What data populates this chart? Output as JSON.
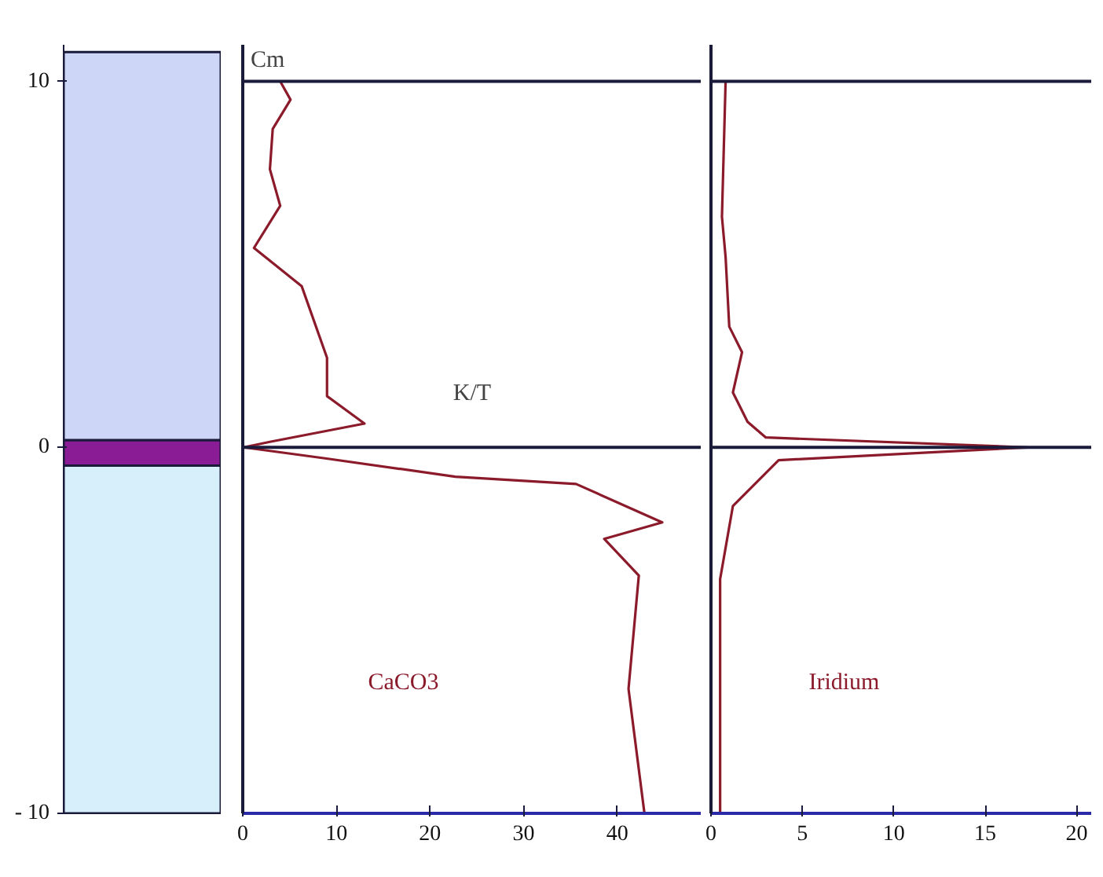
{
  "chart_data": [
    {
      "type": "bar",
      "categories": [
        null
      ],
      "ylim": [
        -10,
        11
      ],
      "yticks": [
        {
          "value": -10,
          "label": "- 10"
        },
        0,
        10
      ],
      "tick_labels": "y",
      "grid": false,
      "series": [
        {
          "color": "#d6effb",
          "base": [
            -10
          ],
          "values": [
            9.5
          ]
        },
        {
          "color": "#8a1c96",
          "base": [
            -0.5
          ],
          "values": [
            0.7
          ]
        },
        {
          "color": "#cdd6f6",
          "base": [
            0.2
          ],
          "values": [
            10.6
          ]
        }
      ]
    },
    {
      "type": "line",
      "orientation": "horizontal",
      "ylabel": "Cm",
      "xlim": [
        0,
        49
      ],
      "xticks": [
        0,
        10,
        20,
        30,
        40
      ],
      "ylim": [
        -10,
        11
      ],
      "tick_labels": "x",
      "grid": false,
      "marker": "none",
      "line_style": "solid",
      "ref_lines": [
        {
          "axis": "y",
          "value": 10,
          "color": "#1a1a3a"
        },
        {
          "axis": "y",
          "value": 0,
          "color": "#1a1a3a",
          "label": "K/T"
        }
      ],
      "series": [
        {
          "name": "CaCO3",
          "color": "#8b1a2b",
          "x": [
            10,
            9.5,
            8.7,
            7.6,
            6.6,
            5.45,
            4.4,
            2.45,
            1.4,
            0.65,
            0.15,
            0,
            -0.3,
            -0.8,
            -1.0,
            -2.05,
            -2.5,
            -3.5,
            -6.6,
            -10
          ],
          "values": [
            4.0,
            5.1,
            3.2,
            2.9,
            4.0,
            1.2,
            6.3,
            9.0,
            9.0,
            13.0,
            2.9,
            0.1,
            8.8,
            22.7,
            35.6,
            44.8,
            38.6,
            42.3,
            41.2,
            42.9
          ]
        }
      ]
    },
    {
      "type": "line",
      "orientation": "horizontal",
      "xlim": [
        0,
        20.8
      ],
      "xticks": [
        0,
        5,
        10,
        15,
        20
      ],
      "ylim": [
        -10,
        11
      ],
      "tick_labels": "x",
      "grid": false,
      "marker": "none",
      "line_style": "solid",
      "ref_lines": [
        {
          "axis": "y",
          "value": 10,
          "color": "#1a1a3a"
        },
        {
          "axis": "y",
          "value": 0,
          "color": "#1a1a3a"
        }
      ],
      "series": [
        {
          "name": "Iridium",
          "color": "#8b1a2b",
          "x": [
            10,
            6.3,
            5.2,
            3.3,
            2.6,
            1.5,
            0.7,
            0.27,
            0,
            -0.35,
            -1.6,
            -3.6,
            -10
          ],
          "values": [
            0.8,
            0.6,
            0.8,
            1.0,
            1.7,
            1.2,
            2.0,
            3.0,
            17.3,
            3.7,
            1.2,
            0.5,
            0.5
          ]
        }
      ]
    }
  ]
}
